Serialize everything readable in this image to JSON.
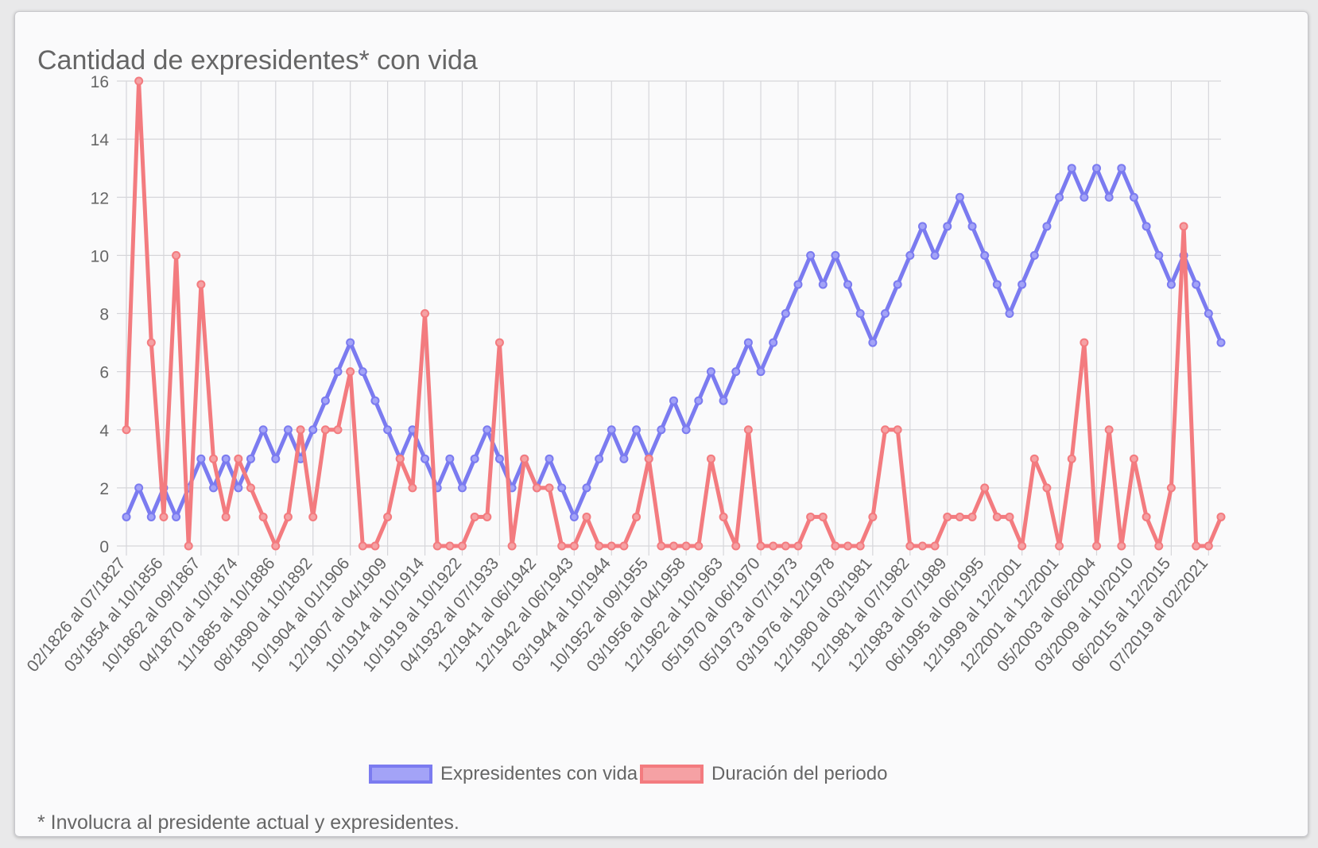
{
  "chart_data": {
    "type": "line",
    "title": "Cantidad de expresidentes* con vida",
    "footnote": "* Involucra al presidente actual y expresidentes.",
    "ylim": [
      0,
      16
    ],
    "yticks": [
      0,
      2,
      4,
      6,
      8,
      10,
      12,
      14,
      16
    ],
    "point_count": 89,
    "tick_labels": [
      "02/1826 al 07/1827",
      "03/1854 al 10/1856",
      "10/1862 al 09/1867",
      "04/1870 al 10/1874",
      "11/1885 al 10/1886",
      "08/1890 al 10/1892",
      "10/1904 al 01/1906",
      "12/1907 al 04/1909",
      "10/1914 al 10/1914",
      "10/1919 al 10/1922",
      "04/1932 al 07/1933",
      "12/1941 al 06/1942",
      "12/1942 al 06/1943",
      "03/1944 al 10/1944",
      "10/1952 al 09/1955",
      "03/1956 al 04/1958",
      "12/1962 al 10/1963",
      "05/1970 al 06/1970",
      "05/1973 al 07/1973",
      "03/1976 al 12/1978",
      "12/1980 al 03/1981",
      "12/1981 al 07/1982",
      "12/1983 al 07/1989",
      "06/1995 al 06/1995",
      "12/1999 al 12/2001",
      "12/2001 al 12/2001",
      "05/2003 al 06/2004",
      "03/2009 al 10/2010",
      "06/2015 al 12/2015",
      "07/2019 al 02/2021"
    ],
    "series": [
      {
        "name": "Expresidentes con vida",
        "color": "#7b7bf0",
        "fill": "#a3a3f7",
        "values": [
          1,
          2,
          1,
          2,
          1,
          2,
          3,
          2,
          3,
          2,
          3,
          4,
          3,
          4,
          3,
          4,
          5,
          6,
          7,
          6,
          5,
          4,
          3,
          4,
          3,
          2,
          3,
          2,
          3,
          4,
          3,
          2,
          3,
          2,
          3,
          2,
          1,
          2,
          3,
          4,
          3,
          4,
          3,
          4,
          5,
          4,
          5,
          6,
          5,
          6,
          7,
          6,
          7,
          8,
          9,
          10,
          9,
          10,
          9,
          8,
          7,
          8,
          9,
          10,
          11,
          10,
          11,
          12,
          11,
          10,
          9,
          8,
          9,
          10,
          11,
          12,
          13,
          12,
          13,
          12,
          13,
          12,
          11,
          10,
          9,
          10,
          9,
          8,
          7
        ]
      },
      {
        "name": "Duración del periodo",
        "color": "#f37b7f",
        "fill": "#f5a1a4",
        "values": [
          4,
          16,
          7,
          1,
          10,
          0,
          9,
          3,
          1,
          3,
          2,
          1,
          0,
          1,
          4,
          1,
          4,
          4,
          6,
          0,
          0,
          1,
          3,
          2,
          8,
          0,
          0,
          0,
          1,
          1,
          7,
          0,
          3,
          2,
          2,
          0,
          0,
          1,
          0,
          0,
          0,
          1,
          3,
          0,
          0,
          0,
          0,
          3,
          1,
          0,
          4,
          0,
          0,
          0,
          0,
          1,
          1,
          0,
          0,
          0,
          1,
          4,
          4,
          0,
          0,
          0,
          1,
          1,
          1,
          2,
          1,
          1,
          0,
          3,
          2,
          0,
          3,
          7,
          0,
          4,
          0,
          3,
          1,
          0,
          2,
          11,
          0,
          0,
          1
        ]
      }
    ]
  }
}
